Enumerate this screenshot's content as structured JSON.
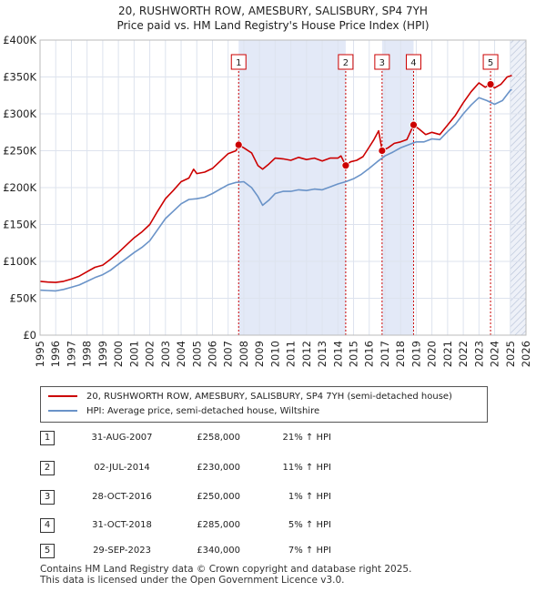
{
  "title_line1": "20, RUSHWORTH ROW, AMESBURY, SALISBURY, SP4 7YH",
  "title_line2": "Price paid vs. HM Land Registry's House Price Index (HPI)",
  "colors": {
    "price": "#cc0000",
    "hpi": "#6a93c8",
    "shade": "#e3e9f7",
    "marker_line": "#cc0000"
  },
  "chart_data": {
    "type": "line",
    "ylim": [
      0,
      400000
    ],
    "xlim": [
      1995,
      2026
    ],
    "y_ticks": [
      0,
      50000,
      100000,
      150000,
      200000,
      250000,
      300000,
      350000,
      400000
    ],
    "y_tick_labels": [
      "£0",
      "£50K",
      "£100K",
      "£150K",
      "£200K",
      "£250K",
      "£300K",
      "£350K",
      "£400K"
    ],
    "x_ticks": [
      1995,
      1996,
      1997,
      1998,
      1999,
      2000,
      2001,
      2002,
      2003,
      2004,
      2005,
      2006,
      2007,
      2008,
      2009,
      2010,
      2011,
      2012,
      2013,
      2014,
      2015,
      2016,
      2017,
      2018,
      2019,
      2020,
      2021,
      2022,
      2023,
      2024,
      2025,
      2026
    ],
    "series": [
      {
        "name": "20, RUSHWORTH ROW, AMESBURY, SALISBURY, SP4 7YH (semi-detached house)",
        "points": [
          [
            1995.0,
            73000
          ],
          [
            1995.5,
            72000
          ],
          [
            1996.0,
            71500
          ],
          [
            1996.5,
            73000
          ],
          [
            1997.0,
            76000
          ],
          [
            1997.5,
            80000
          ],
          [
            1998.0,
            86000
          ],
          [
            1998.5,
            92000
          ],
          [
            1999.0,
            95000
          ],
          [
            1999.5,
            103000
          ],
          [
            2000.0,
            112000
          ],
          [
            2000.5,
            122000
          ],
          [
            2001.0,
            132000
          ],
          [
            2001.5,
            140000
          ],
          [
            2002.0,
            150000
          ],
          [
            2002.5,
            168000
          ],
          [
            2003.0,
            185000
          ],
          [
            2003.5,
            196000
          ],
          [
            2004.0,
            208000
          ],
          [
            2004.5,
            213000
          ],
          [
            2004.8,
            225000
          ],
          [
            2005.0,
            219000
          ],
          [
            2005.5,
            221000
          ],
          [
            2006.0,
            226000
          ],
          [
            2006.5,
            236000
          ],
          [
            2007.0,
            246000
          ],
          [
            2007.5,
            250000
          ],
          [
            2007.67,
            258000
          ],
          [
            2008.0,
            254000
          ],
          [
            2008.5,
            247000
          ],
          [
            2008.9,
            230000
          ],
          [
            2009.2,
            225000
          ],
          [
            2009.6,
            232000
          ],
          [
            2010.0,
            240000
          ],
          [
            2010.5,
            239000
          ],
          [
            2011.0,
            237000
          ],
          [
            2011.5,
            241000
          ],
          [
            2012.0,
            238000
          ],
          [
            2012.5,
            240000
          ],
          [
            2013.0,
            236000
          ],
          [
            2013.5,
            240000
          ],
          [
            2014.0,
            240000
          ],
          [
            2014.2,
            243000
          ],
          [
            2014.5,
            230000
          ],
          [
            2014.8,
            235000
          ],
          [
            2015.2,
            237000
          ],
          [
            2015.6,
            242000
          ],
          [
            2016.0,
            255000
          ],
          [
            2016.3,
            265000
          ],
          [
            2016.6,
            277000
          ],
          [
            2016.82,
            250000
          ],
          [
            2017.2,
            254000
          ],
          [
            2017.6,
            260000
          ],
          [
            2018.0,
            262000
          ],
          [
            2018.4,
            265000
          ],
          [
            2018.83,
            285000
          ],
          [
            2019.2,
            279000
          ],
          [
            2019.6,
            272000
          ],
          [
            2020.0,
            275000
          ],
          [
            2020.5,
            272000
          ],
          [
            2021.0,
            285000
          ],
          [
            2021.5,
            298000
          ],
          [
            2022.0,
            315000
          ],
          [
            2022.5,
            330000
          ],
          [
            2023.0,
            342000
          ],
          [
            2023.4,
            336000
          ],
          [
            2023.74,
            340000
          ],
          [
            2024.0,
            335000
          ],
          [
            2024.4,
            340000
          ],
          [
            2024.8,
            350000
          ],
          [
            2025.1,
            352000
          ]
        ]
      },
      {
        "name": "HPI: Average price, semi-detached house, Wiltshire",
        "points": [
          [
            1995.0,
            61000
          ],
          [
            1995.5,
            60500
          ],
          [
            1996.0,
            60000
          ],
          [
            1996.5,
            62000
          ],
          [
            1997.0,
            65000
          ],
          [
            1997.5,
            68000
          ],
          [
            1998.0,
            73000
          ],
          [
            1998.5,
            78000
          ],
          [
            1999.0,
            82000
          ],
          [
            1999.5,
            88000
          ],
          [
            2000.0,
            96000
          ],
          [
            2000.5,
            104000
          ],
          [
            2001.0,
            112000
          ],
          [
            2001.5,
            119000
          ],
          [
            2002.0,
            128000
          ],
          [
            2002.5,
            143000
          ],
          [
            2003.0,
            158000
          ],
          [
            2003.5,
            168000
          ],
          [
            2004.0,
            178000
          ],
          [
            2004.5,
            184000
          ],
          [
            2005.0,
            185000
          ],
          [
            2005.5,
            187000
          ],
          [
            2006.0,
            192000
          ],
          [
            2006.5,
            198000
          ],
          [
            2007.0,
            204000
          ],
          [
            2007.5,
            207000
          ],
          [
            2008.0,
            208000
          ],
          [
            2008.5,
            200000
          ],
          [
            2008.9,
            188000
          ],
          [
            2009.2,
            176000
          ],
          [
            2009.6,
            183000
          ],
          [
            2010.0,
            192000
          ],
          [
            2010.5,
            195000
          ],
          [
            2011.0,
            195000
          ],
          [
            2011.5,
            197000
          ],
          [
            2012.0,
            196000
          ],
          [
            2012.5,
            198000
          ],
          [
            2013.0,
            197000
          ],
          [
            2013.5,
            201000
          ],
          [
            2014.0,
            205000
          ],
          [
            2014.5,
            208000
          ],
          [
            2015.0,
            212000
          ],
          [
            2015.5,
            218000
          ],
          [
            2016.0,
            226000
          ],
          [
            2016.5,
            235000
          ],
          [
            2017.0,
            243000
          ],
          [
            2017.5,
            248000
          ],
          [
            2018.0,
            254000
          ],
          [
            2018.5,
            258000
          ],
          [
            2019.0,
            262000
          ],
          [
            2019.5,
            262000
          ],
          [
            2020.0,
            266000
          ],
          [
            2020.5,
            265000
          ],
          [
            2021.0,
            276000
          ],
          [
            2021.5,
            286000
          ],
          [
            2022.0,
            300000
          ],
          [
            2022.5,
            312000
          ],
          [
            2023.0,
            322000
          ],
          [
            2023.5,
            318000
          ],
          [
            2024.0,
            313000
          ],
          [
            2024.5,
            318000
          ],
          [
            2025.0,
            332000
          ],
          [
            2025.1,
            333000
          ]
        ]
      }
    ],
    "shaded_periods": [
      [
        2007.67,
        2014.5
      ],
      [
        2016.82,
        2018.83
      ]
    ],
    "hatch_start": 2025.0,
    "markers": [
      {
        "label": "1",
        "x": 2007.67,
        "y": 258000
      },
      {
        "label": "2",
        "x": 2014.5,
        "y": 230000
      },
      {
        "label": "3",
        "x": 2016.82,
        "y": 250000
      },
      {
        "label": "4",
        "x": 2018.83,
        "y": 285000
      },
      {
        "label": "5",
        "x": 2023.74,
        "y": 340000
      }
    ]
  },
  "legend": {
    "price_label": "20, RUSHWORTH ROW, AMESBURY, SALISBURY, SP4 7YH (semi-detached house)",
    "hpi_label": "HPI: Average price, semi-detached house, Wiltshire"
  },
  "sales": [
    {
      "num": "1",
      "date": "31-AUG-2007",
      "price": "£258,000",
      "hpi": "21% ↑ HPI"
    },
    {
      "num": "2",
      "date": "02-JUL-2014",
      "price": "£230,000",
      "hpi": "11% ↑ HPI"
    },
    {
      "num": "3",
      "date": "28-OCT-2016",
      "price": "£250,000",
      "hpi": "1% ↑ HPI"
    },
    {
      "num": "4",
      "date": "31-OCT-2018",
      "price": "£285,000",
      "hpi": "5% ↑ HPI"
    },
    {
      "num": "5",
      "date": "29-SEP-2023",
      "price": "£340,000",
      "hpi": "7% ↑ HPI"
    }
  ],
  "footer_line1": "Contains HM Land Registry data © Crown copyright and database right 2025.",
  "footer_line2": "This data is licensed under the Open Government Licence v3.0."
}
